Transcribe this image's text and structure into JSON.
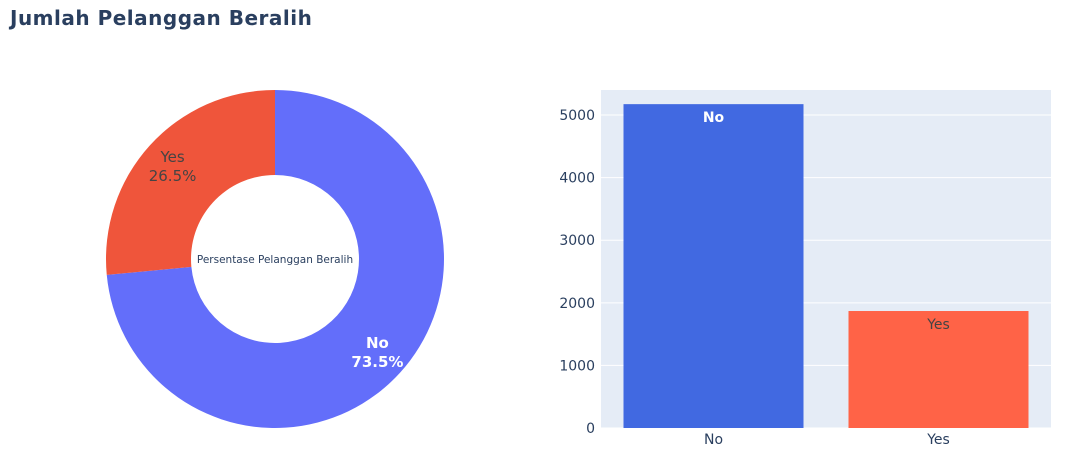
{
  "title": "Jumlah Pelanggan Beralih",
  "colors": {
    "title": "#2a3f5f",
    "pie_no": "#636efa",
    "pie_yes": "#ef553b",
    "bar_no": "#4169e1",
    "bar_yes": "#ff6347",
    "plot_bg": "#e5ecf6",
    "grid": "#ffffff",
    "axis_text": "#2a3f5f"
  },
  "chart_data": [
    {
      "type": "pie",
      "hole": true,
      "center_label": "Persentase Pelanggan Beralih",
      "slices": [
        {
          "label": "No",
          "value": 73.5,
          "text": "73.5%"
        },
        {
          "label": "Yes",
          "value": 26.5,
          "text": "26.5%"
        }
      ]
    },
    {
      "type": "bar",
      "categories": [
        "No",
        "Yes"
      ],
      "values": [
        5174,
        1869
      ],
      "ylim": [
        0,
        5400
      ],
      "yticks": [
        0,
        1000,
        2000,
        3000,
        4000,
        5000
      ],
      "grid": true
    }
  ]
}
